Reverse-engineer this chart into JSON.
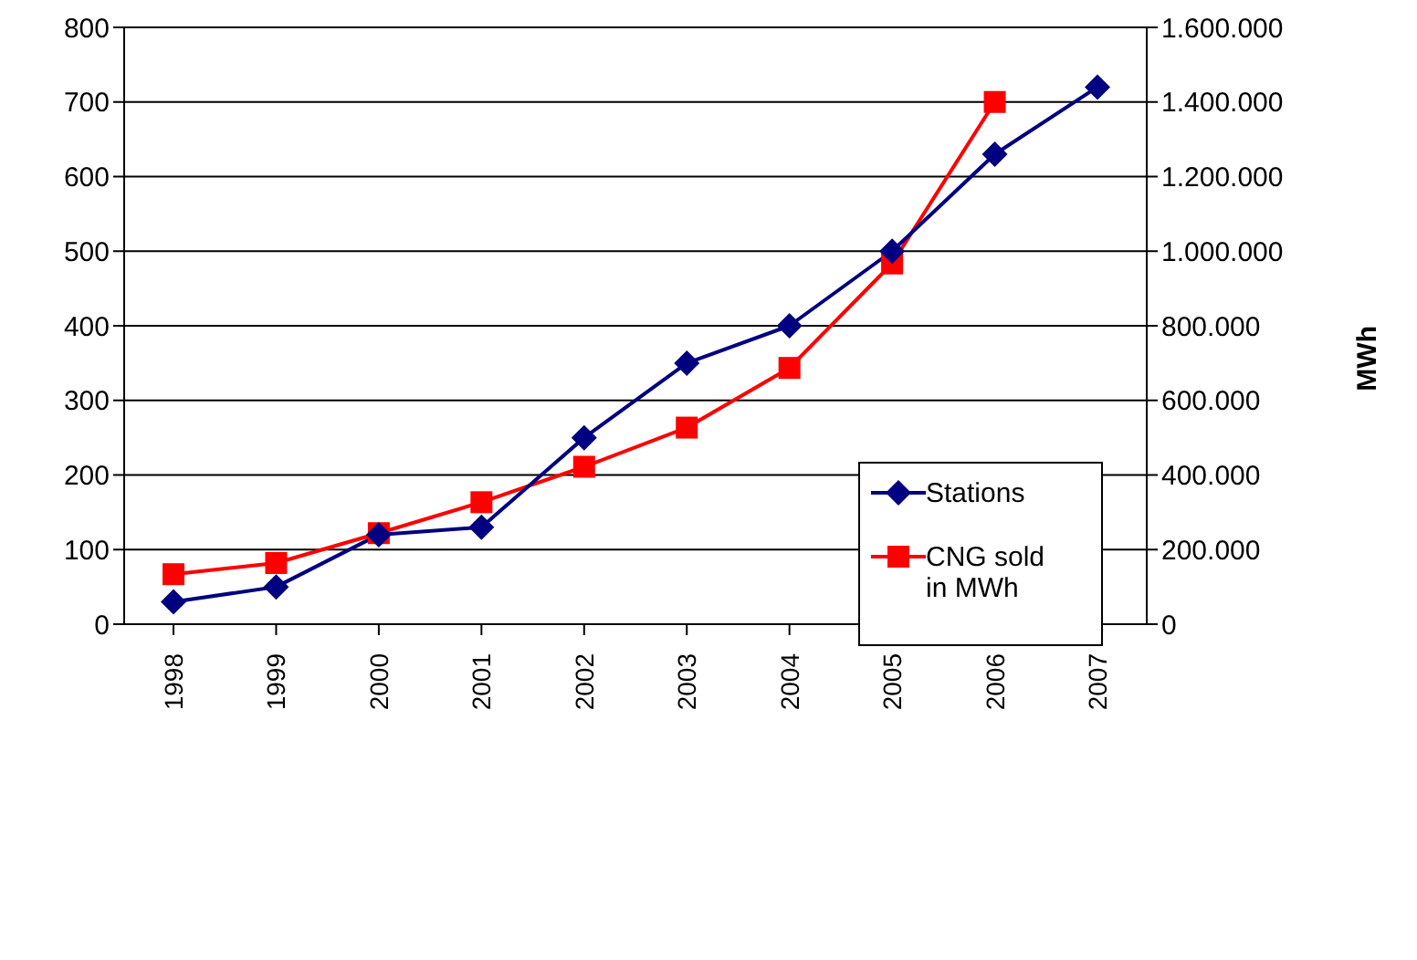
{
  "chart_data": {
    "type": "line",
    "categories": [
      "1998",
      "1999",
      "2000",
      "2001",
      "2002",
      "2003",
      "2004",
      "2005",
      "2006",
      "2007"
    ],
    "series": [
      {
        "name": "Stations",
        "color": "#000080",
        "marker": "diamond",
        "values": [
          30,
          50,
          120,
          130,
          250,
          350,
          400,
          500,
          630,
          720
        ]
      },
      {
        "name": "CNG sold in MWh",
        "color": "#ff0000",
        "marker": "square",
        "axis": "y2",
        "values": [
          134000,
          164000,
          244000,
          327000,
          422000,
          527000,
          687000,
          967000,
          1400000,
          null
        ]
      }
    ],
    "y2label": "MWh",
    "ylim": [
      0,
      800
    ],
    "yticks": [
      0,
      100,
      200,
      300,
      400,
      500,
      600,
      700,
      800
    ],
    "y2lim": [
      0,
      1600000
    ],
    "y2ticks": [
      0,
      {
        "value": 200000,
        "label": "200.000"
      },
      {
        "value": 400000,
        "label": "400.000"
      },
      {
        "value": 600000,
        "label": "600.000"
      },
      {
        "value": 800000,
        "label": "800.000"
      },
      {
        "value": 1000000,
        "label": "1.000.000"
      },
      {
        "value": 1200000,
        "label": "1.200.000"
      },
      {
        "value": 1400000,
        "label": "1.400.000"
      },
      {
        "value": 1600000,
        "label": "1.600.000"
      }
    ],
    "grid": "y",
    "legend": "right",
    "line_style": "solid"
  }
}
